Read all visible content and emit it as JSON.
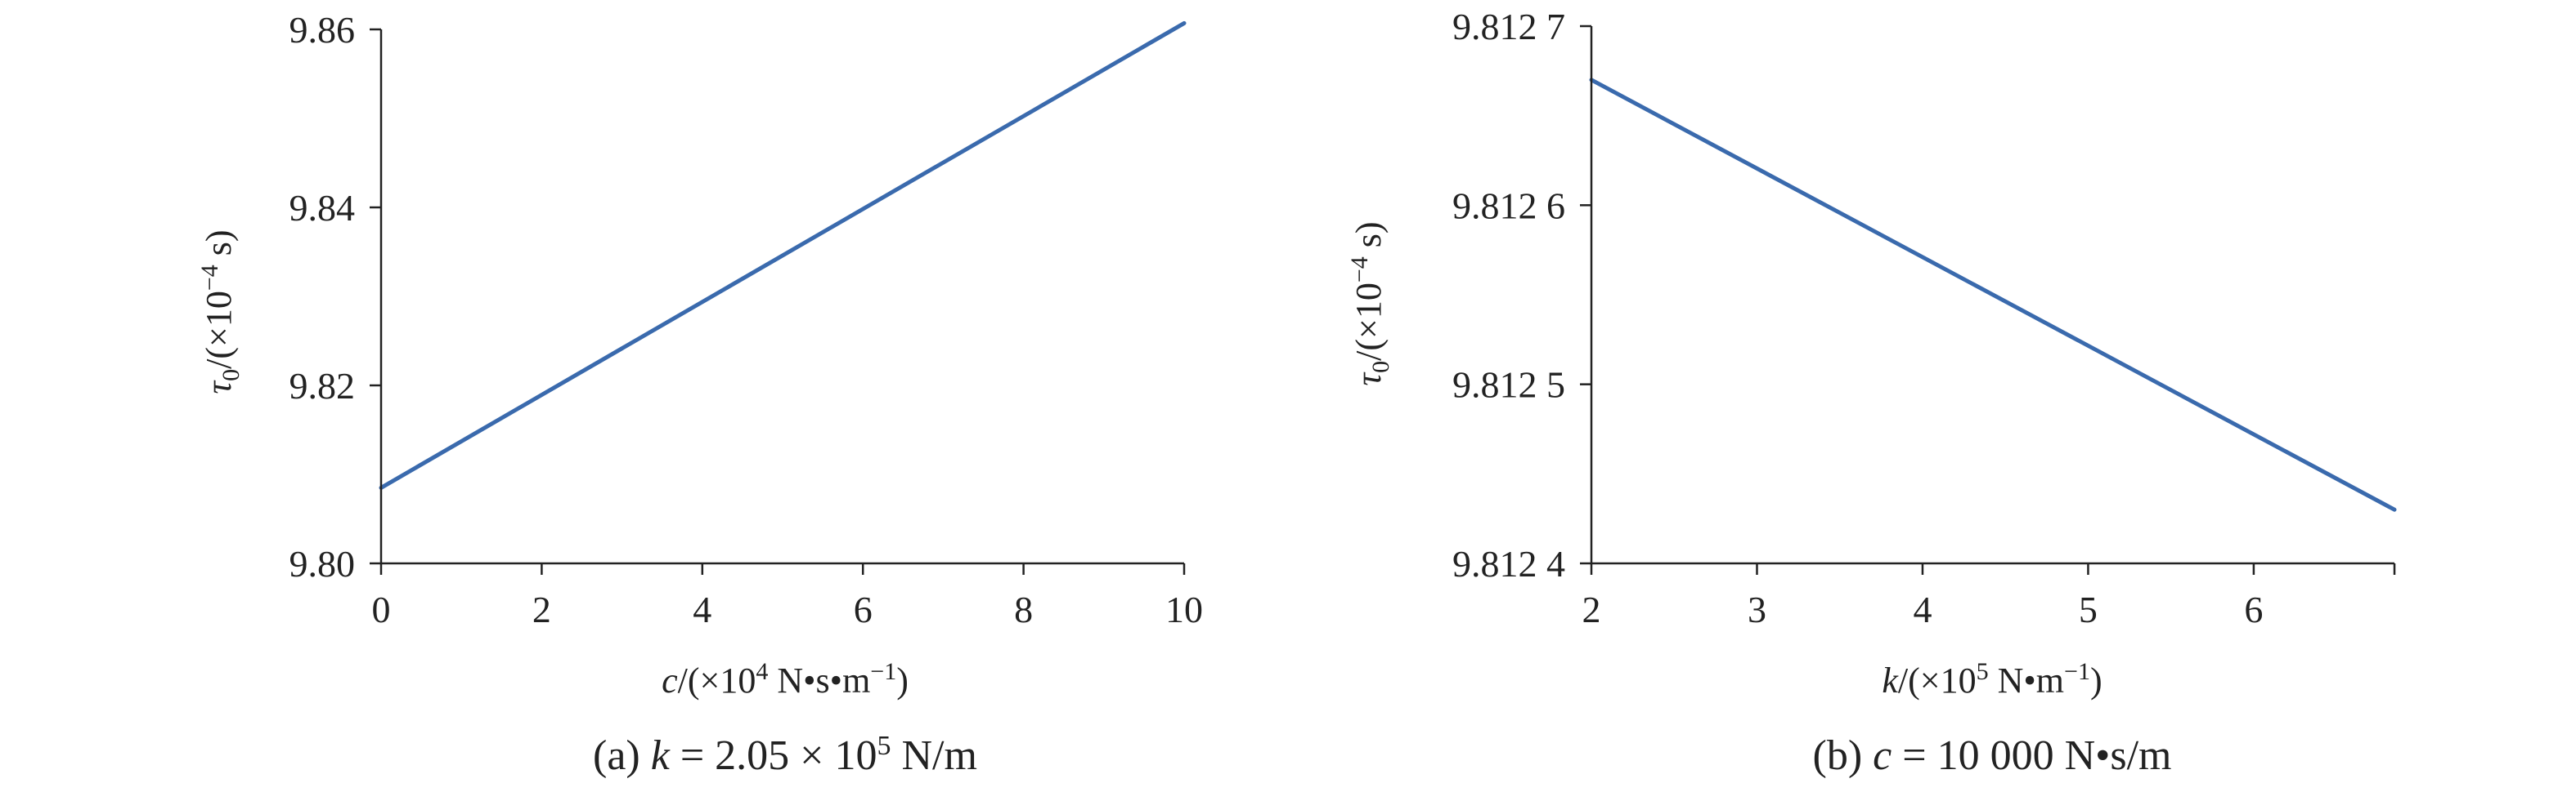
{
  "figure": {
    "accent_color": "#3a6aad"
  },
  "chart_data": [
    {
      "type": "line",
      "panel": "a",
      "caption": {
        "prefix": "(a)",
        "var": "k",
        "rest": " = 2.05 × 10",
        "exp": "5",
        "unit": " N/m"
      },
      "xlabel": {
        "var": "c",
        "pre": "/(×10",
        "exp": "4",
        "post": " N•s•m",
        "unit_exp": "−1",
        "close": ")"
      },
      "ylabel": {
        "var": "τ",
        "sub": "0",
        "pre": "/(×10",
        "exp": "−4",
        "post": " s)"
      },
      "xlim": [
        0,
        10
      ],
      "ylim": [
        9.8,
        9.86
      ],
      "xticks": [
        0,
        2,
        4,
        6,
        8,
        10
      ],
      "xtick_labels": [
        "0",
        "2",
        "4",
        "6",
        "8",
        "10"
      ],
      "yticks": [
        9.8,
        9.82,
        9.84,
        9.86
      ],
      "ytick_labels": [
        "9.80",
        "9.82",
        "9.84",
        "9.86"
      ],
      "grid": false,
      "series": [
        {
          "color": "#3a6aad",
          "x": [
            0,
            10
          ],
          "y": [
            9.8085,
            9.8607
          ]
        }
      ]
    },
    {
      "type": "line",
      "panel": "b",
      "caption": {
        "prefix": "(b)",
        "var": "c",
        "rest": " = 10 000 N•s/m"
      },
      "xlabel": {
        "var": "k",
        "pre": "/(×10",
        "exp": "5",
        "post": " N•m",
        "unit_exp": "−1",
        "close": ")"
      },
      "ylabel": {
        "var": "τ",
        "sub": "0",
        "pre": "/(×10",
        "exp": "−4",
        "post": " s)"
      },
      "xlim": [
        2,
        6.85
      ],
      "ylim": [
        9.8124,
        9.8127
      ],
      "xticks": [
        2,
        3,
        4,
        5,
        6,
        6.85
      ],
      "xtick_labels": [
        "2",
        "3",
        "4",
        "5",
        "6",
        ""
      ],
      "yticks": [
        9.8124,
        9.8125,
        9.8126,
        9.8127
      ],
      "ytick_labels": [
        "9.812 4",
        "9.812 5",
        "9.812 6",
        "9.812 7"
      ],
      "grid": false,
      "series": [
        {
          "color": "#3a6aad",
          "x": [
            2,
            6.85
          ],
          "y": [
            9.81267,
            9.81243
          ]
        }
      ]
    }
  ]
}
